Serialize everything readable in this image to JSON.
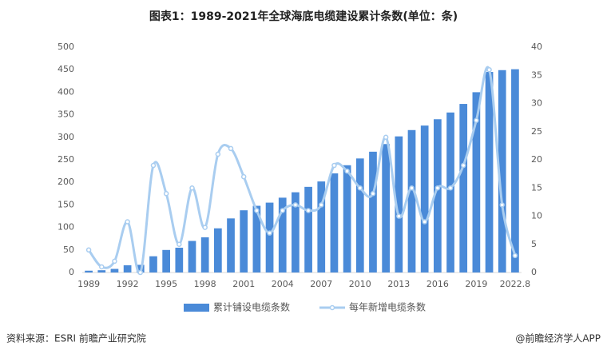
{
  "chart_data": {
    "type": "bar+line",
    "title": "图表1：1989-2021年全球海底电缆建设累计条数(单位：条)",
    "categories": [
      "1989",
      null,
      null,
      "1992",
      null,
      null,
      "1995",
      null,
      null,
      "1998",
      null,
      null,
      "2001",
      null,
      null,
      "2004",
      null,
      null,
      "2007",
      null,
      null,
      "2010",
      null,
      null,
      "2013",
      null,
      null,
      "2016",
      null,
      null,
      "2019",
      null,
      null,
      "2022.8"
    ],
    "series": [
      {
        "name": "累计铺设电缆条数",
        "color": "#4a8ad8",
        "kind": "bar",
        "values": [
          4,
          5,
          8,
          16,
          17,
          36,
          50,
          55,
          70,
          78,
          98,
          120,
          138,
          148,
          155,
          166,
          178,
          190,
          202,
          220,
          238,
          253,
          268,
          285,
          302,
          316,
          326,
          340,
          355,
          374,
          400,
          445,
          449,
          451
        ]
      },
      {
        "name": "每年新增电缆条数",
        "color": "#a9cdf0",
        "kind": "line",
        "axis": "y2",
        "values": [
          4,
          1,
          2,
          9,
          0,
          19,
          14,
          5,
          15,
          8,
          21,
          22,
          17,
          11,
          7,
          11,
          12,
          11,
          12,
          19,
          18,
          15,
          14,
          24,
          10,
          15,
          9,
          15,
          15,
          19,
          27,
          36,
          12,
          3
        ]
      }
    ],
    "ylim": [
      0,
      500
    ],
    "yticks": [
      0,
      50,
      100,
      150,
      200,
      250,
      300,
      350,
      400,
      450,
      500
    ],
    "y2lim": [
      0,
      40
    ],
    "y2ticks": [
      0,
      5,
      10,
      15,
      20,
      25,
      30,
      35,
      40
    ],
    "legend": "bottom",
    "source": "资料来源：ESRI 前瞻产业研究院",
    "credit": "@前瞻经济学人APP"
  }
}
